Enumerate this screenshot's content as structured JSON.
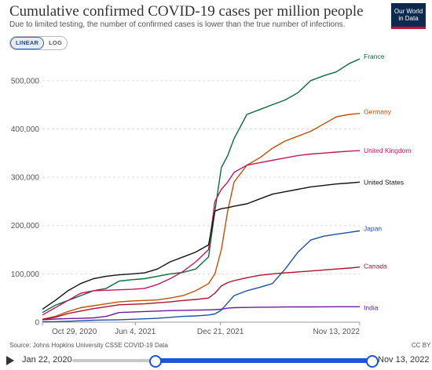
{
  "title": "Cumulative confirmed COVID-19 cases per million people",
  "subtitle": "Due to limited testing, the number of confirmed cases is lower than the true number of infections.",
  "logo": {
    "line1": "Our World",
    "line2": "in Data"
  },
  "toggle": {
    "linear": "LINEAR",
    "log": "LOG",
    "active": "LINEAR"
  },
  "source": "Source: Johns Hopkins University CSSE COVID-19 Data",
  "license": "CC BY",
  "timeline": {
    "start_label": "Jan 22, 2020",
    "end_label": "Nov 13, 2022",
    "range_start": "Oct 29, 2020",
    "range_end": "Nov 13, 2022"
  },
  "chart_data": {
    "type": "line",
    "title": "Cumulative confirmed COVID-19 cases per million people",
    "xlabel": "",
    "ylabel": "",
    "x_ticks": [
      "Oct 29, 2020",
      "Jun 4, 2021",
      "Dec 21, 2021",
      "Nov 13, 2022"
    ],
    "x_tick_days": [
      0,
      218,
      418,
      745
    ],
    "x_range_days": [
      0,
      745
    ],
    "y_ticks": [
      0,
      100000,
      200000,
      300000,
      400000,
      500000
    ],
    "y_tick_labels": [
      "0",
      "100,000",
      "200,000",
      "300,000",
      "400,000",
      "500,000"
    ],
    "ylim": [
      0,
      550000
    ],
    "grid": true,
    "legend": "line-end labels",
    "x_days": [
      0,
      30,
      60,
      90,
      120,
      150,
      180,
      210,
      240,
      270,
      300,
      330,
      360,
      390,
      405,
      420,
      435,
      450,
      480,
      510,
      540,
      570,
      600,
      630,
      660,
      690,
      720,
      745
    ],
    "series": [
      {
        "name": "France",
        "color": "#0a6b3b",
        "values": [
          20000,
          35000,
          45000,
          55000,
          65000,
          70000,
          85000,
          88000,
          90000,
          95000,
          100000,
          103000,
          110000,
          135000,
          230000,
          320000,
          345000,
          380000,
          430000,
          440000,
          450000,
          460000,
          475000,
          500000,
          510000,
          518000,
          535000,
          545000
        ]
      },
      {
        "name": "Germany",
        "color": "#c05008",
        "values": [
          6000,
          12000,
          22000,
          30000,
          34000,
          38000,
          42000,
          44000,
          45000,
          46000,
          50000,
          55000,
          65000,
          80000,
          100000,
          150000,
          230000,
          290000,
          325000,
          340000,
          360000,
          375000,
          385000,
          395000,
          410000,
          425000,
          430000,
          432000
        ]
      },
      {
        "name": "United Kingdom",
        "color": "#c2185b",
        "values": [
          15000,
          30000,
          45000,
          60000,
          65000,
          66000,
          67000,
          68000,
          70000,
          78000,
          90000,
          105000,
          125000,
          150000,
          250000,
          275000,
          290000,
          310000,
          325000,
          330000,
          335000,
          340000,
          345000,
          348000,
          350000,
          352000,
          354000,
          355000
        ]
      },
      {
        "name": "United States",
        "color": "#111111",
        "values": [
          27000,
          45000,
          65000,
          80000,
          90000,
          95000,
          98000,
          100000,
          102000,
          110000,
          125000,
          135000,
          145000,
          160000,
          230000,
          235000,
          237000,
          240000,
          245000,
          255000,
          265000,
          270000,
          275000,
          280000,
          283000,
          286000,
          288000,
          290000
        ]
      },
      {
        "name": "Japan",
        "color": "#1f4fa8",
        "values": [
          800,
          1200,
          2000,
          3000,
          4000,
          4500,
          5000,
          6000,
          7000,
          8000,
          10000,
          12000,
          13000,
          15000,
          17000,
          25000,
          40000,
          55000,
          65000,
          72000,
          80000,
          110000,
          145000,
          170000,
          178000,
          182000,
          186000,
          189000
        ]
      },
      {
        "name": "Canada",
        "color": "#b1122b",
        "values": [
          6000,
          10000,
          18000,
          23000,
          28000,
          32000,
          36000,
          37000,
          38000,
          40000,
          42000,
          45000,
          47000,
          50000,
          60000,
          75000,
          82000,
          86000,
          92000,
          97000,
          100000,
          102000,
          104000,
          106000,
          108000,
          110000,
          112000,
          114000
        ]
      },
      {
        "name": "India",
        "color": "#6a1b9a",
        "values": [
          5000,
          6500,
          7500,
          8000,
          9000,
          12000,
          20000,
          21000,
          22000,
          23000,
          24000,
          24500,
          25000,
          25500,
          26000,
          27000,
          29000,
          30000,
          30500,
          31000,
          31200,
          31400,
          31600,
          31700,
          31800,
          31900,
          31950,
          32000
        ]
      }
    ]
  }
}
